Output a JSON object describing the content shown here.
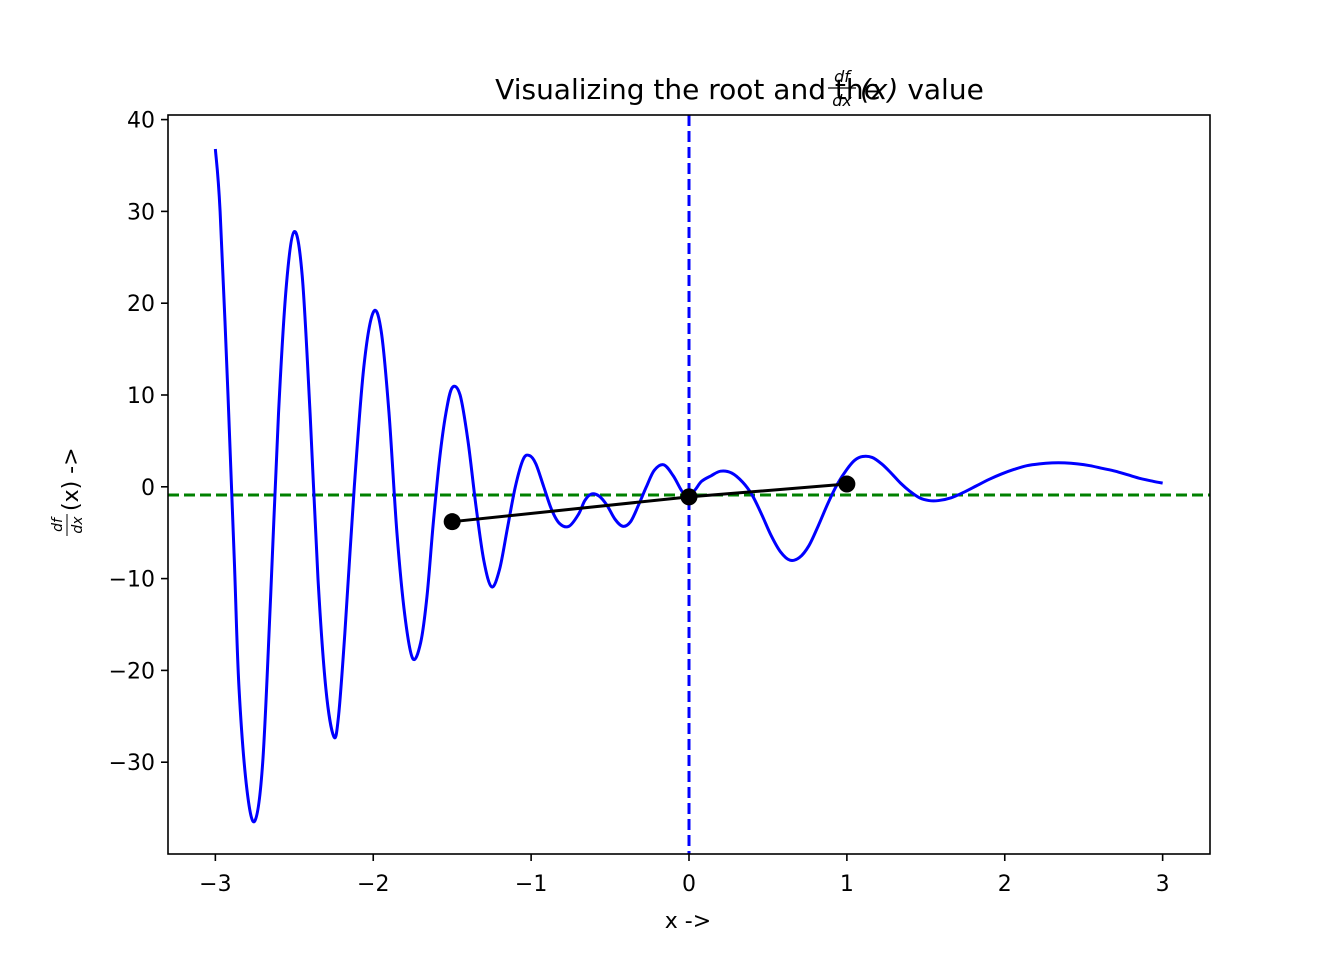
{
  "chart_data": {
    "type": "line",
    "title": {
      "prefix": "Visualizing the root and the ",
      "frac_num": "df",
      "frac_den": "dx",
      "suffix_var": "(x)",
      "suffix": " value"
    },
    "xlabel": "x ->",
    "ylabel": {
      "frac_num": "df",
      "frac_den": "dx",
      "suffix": "(x) ->"
    },
    "xlim": [
      -3.3,
      3.3
    ],
    "ylim": [
      -40,
      40.5
    ],
    "x_ticks": [
      -3,
      -2,
      -1,
      0,
      1,
      2,
      3
    ],
    "x_tick_labels": [
      "−3",
      "−2",
      "−1",
      "0",
      "1",
      "2",
      "3"
    ],
    "y_ticks": [
      40,
      30,
      20,
      10,
      0,
      -10,
      -20,
      -30
    ],
    "y_tick_labels": [
      "40",
      "30",
      "20",
      "10",
      "0",
      "−10",
      "−20",
      "−30"
    ],
    "grid": false,
    "series": [
      {
        "kind": "curve",
        "color": "#0000ff",
        "x": [
          -3.0,
          -2.97,
          -2.92,
          -2.88,
          -2.85,
          -2.8,
          -2.75,
          -2.7,
          -2.65,
          -2.6,
          -2.55,
          -2.5,
          -2.45,
          -2.4,
          -2.35,
          -2.3,
          -2.25,
          -2.22,
          -2.18,
          -2.12,
          -2.06,
          -2.0,
          -1.95,
          -1.9,
          -1.85,
          -1.8,
          -1.75,
          -1.7,
          -1.66,
          -1.62,
          -1.58,
          -1.54,
          -1.5,
          -1.45,
          -1.4,
          -1.35,
          -1.3,
          -1.25,
          -1.2,
          -1.15,
          -1.1,
          -1.05,
          -1.01,
          -0.97,
          -0.92,
          -0.87,
          -0.82,
          -0.76,
          -0.7,
          -0.66,
          -0.62,
          -0.57,
          -0.52,
          -0.47,
          -0.42,
          -0.37,
          -0.32,
          -0.27,
          -0.22,
          -0.16,
          -0.1,
          -0.04,
          0.0,
          0.04,
          0.08,
          0.14,
          0.2,
          0.27,
          0.34,
          0.4,
          0.46,
          0.52,
          0.58,
          0.64,
          0.7,
          0.76,
          0.82,
          0.88,
          0.94,
          1.0,
          1.05,
          1.1,
          1.16,
          1.22,
          1.28,
          1.34,
          1.4,
          1.46,
          1.52,
          1.58,
          1.66,
          1.74,
          1.82,
          1.9,
          1.98,
          2.06,
          2.14,
          2.22,
          2.3,
          2.38,
          2.46,
          2.54,
          2.62,
          2.7,
          2.78,
          2.86,
          2.94,
          3.0
        ],
        "y": [
          36.8,
          30.0,
          10.0,
          -8.0,
          -22.0,
          -33.0,
          -36.4,
          -30.0,
          -12.0,
          8.0,
          22.0,
          27.8,
          23.0,
          8.0,
          -10.0,
          -22.0,
          -27.2,
          -25.0,
          -16.0,
          0.0,
          13.0,
          19.0,
          17.0,
          8.0,
          -5.0,
          -14.0,
          -18.7,
          -17.0,
          -12.0,
          -4.0,
          3.0,
          8.0,
          10.8,
          10.0,
          5.0,
          -2.0,
          -8.0,
          -10.9,
          -9.0,
          -4.5,
          0.0,
          3.0,
          3.4,
          2.5,
          0.0,
          -2.5,
          -4.0,
          -4.3,
          -3.0,
          -1.5,
          -0.8,
          -1.0,
          -2.0,
          -3.5,
          -4.3,
          -3.8,
          -2.0,
          0.0,
          1.8,
          2.4,
          1.2,
          -0.6,
          -1.0,
          -0.3,
          0.6,
          1.2,
          1.7,
          1.5,
          0.5,
          -0.9,
          -3.0,
          -5.3,
          -7.1,
          -8.0,
          -7.7,
          -6.4,
          -4.2,
          -1.8,
          0.3,
          1.9,
          2.9,
          3.3,
          3.2,
          2.5,
          1.5,
          0.4,
          -0.5,
          -1.2,
          -1.5,
          -1.5,
          -1.2,
          -0.6,
          0.1,
          0.8,
          1.4,
          1.9,
          2.3,
          2.5,
          2.6,
          2.6,
          2.5,
          2.3,
          2.0,
          1.7,
          1.3,
          0.9,
          0.6,
          0.4
        ]
      },
      {
        "kind": "secant",
        "color": "#000000",
        "x": [
          -1.5,
          0.0,
          1.0
        ],
        "y": [
          -3.8,
          -1.1,
          0.3
        ]
      }
    ],
    "reference_lines": [
      {
        "orientation": "vertical",
        "value": 0,
        "color": "#0000ff",
        "style": "dashed"
      },
      {
        "orientation": "horizontal",
        "value": -0.9,
        "color": "#008000",
        "style": "dashed"
      }
    ]
  }
}
